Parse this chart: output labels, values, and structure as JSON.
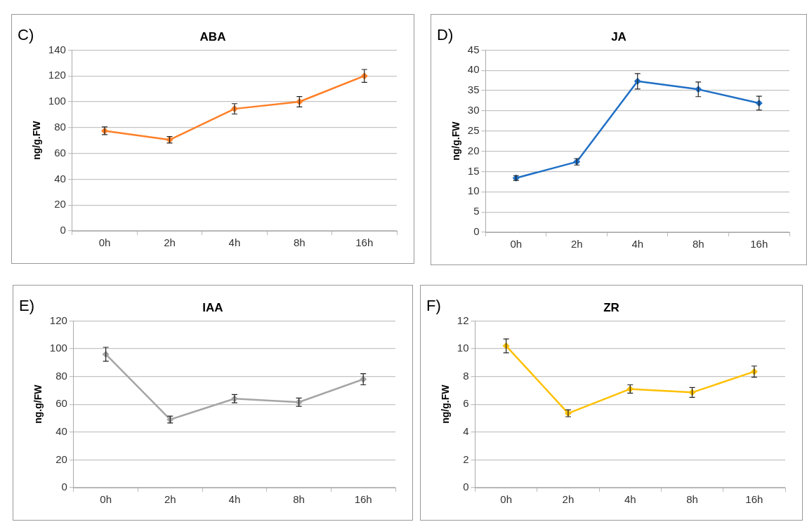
{
  "chart_data": [
    {
      "type": "line",
      "title": "ABA",
      "ylabel": "ng/g.FW",
      "annotations": [
        "C)"
      ],
      "categories": [
        "0h",
        "2h",
        "4h",
        "8h",
        "16h"
      ],
      "series": [
        {
          "color": "#ff7f27",
          "values": [
            77.5,
            70.5,
            94.5,
            100,
            120
          ],
          "errors": [
            3,
            2.5,
            4,
            4,
            5
          ]
        }
      ],
      "ylim": [
        0,
        140
      ],
      "yticks": [
        0,
        20,
        40,
        60,
        80,
        100,
        120,
        140
      ],
      "grid": "y",
      "legend": false,
      "marker": "diamond",
      "line_style": "solid"
    },
    {
      "type": "line",
      "title": "JA",
      "ylabel": "ng/g.FW",
      "annotations": [
        "D)"
      ],
      "categories": [
        "0h",
        "2h",
        "4h",
        "8h",
        "16h"
      ],
      "series": [
        {
          "color": "#1f6fc5",
          "values": [
            13.4,
            17.4,
            37.3,
            35.3,
            31.9
          ],
          "errors": [
            0.6,
            0.8,
            1.9,
            1.8,
            1.7
          ]
        }
      ],
      "ylim": [
        0,
        45
      ],
      "yticks": [
        0,
        5,
        10,
        15,
        20,
        25,
        30,
        35,
        40,
        45
      ],
      "grid": "y",
      "legend": false,
      "marker": "diamond",
      "line_style": "solid"
    },
    {
      "type": "line",
      "title": "IAA",
      "ylabel": "ng.g/FW",
      "annotations": [
        "E)"
      ],
      "categories": [
        "0h",
        "2h",
        "4h",
        "8h",
        "16h"
      ],
      "series": [
        {
          "color": "#a5a5a5",
          "values": [
            96,
            49,
            64,
            61.5,
            78
          ],
          "errors": [
            5,
            2.5,
            3,
            3,
            4
          ]
        }
      ],
      "ylim": [
        0,
        120
      ],
      "yticks": [
        0,
        20,
        40,
        60,
        80,
        100,
        120
      ],
      "grid": "y",
      "legend": false,
      "marker": "diamond",
      "line_style": "solid"
    },
    {
      "type": "line",
      "title": "ZR",
      "ylabel": "ng/g.FW",
      "annotations": [
        "F)"
      ],
      "categories": [
        "0h",
        "2h",
        "4h",
        "8h",
        "16h"
      ],
      "series": [
        {
          "color": "#ffc000",
          "values": [
            10.2,
            5.35,
            7.1,
            6.85,
            8.35
          ],
          "errors": [
            0.5,
            0.25,
            0.3,
            0.35,
            0.4
          ]
        }
      ],
      "ylim": [
        0,
        12
      ],
      "yticks": [
        0,
        2,
        4,
        6,
        8,
        10,
        12
      ],
      "grid": "y",
      "legend": false,
      "marker": "diamond",
      "line_style": "solid"
    }
  ]
}
